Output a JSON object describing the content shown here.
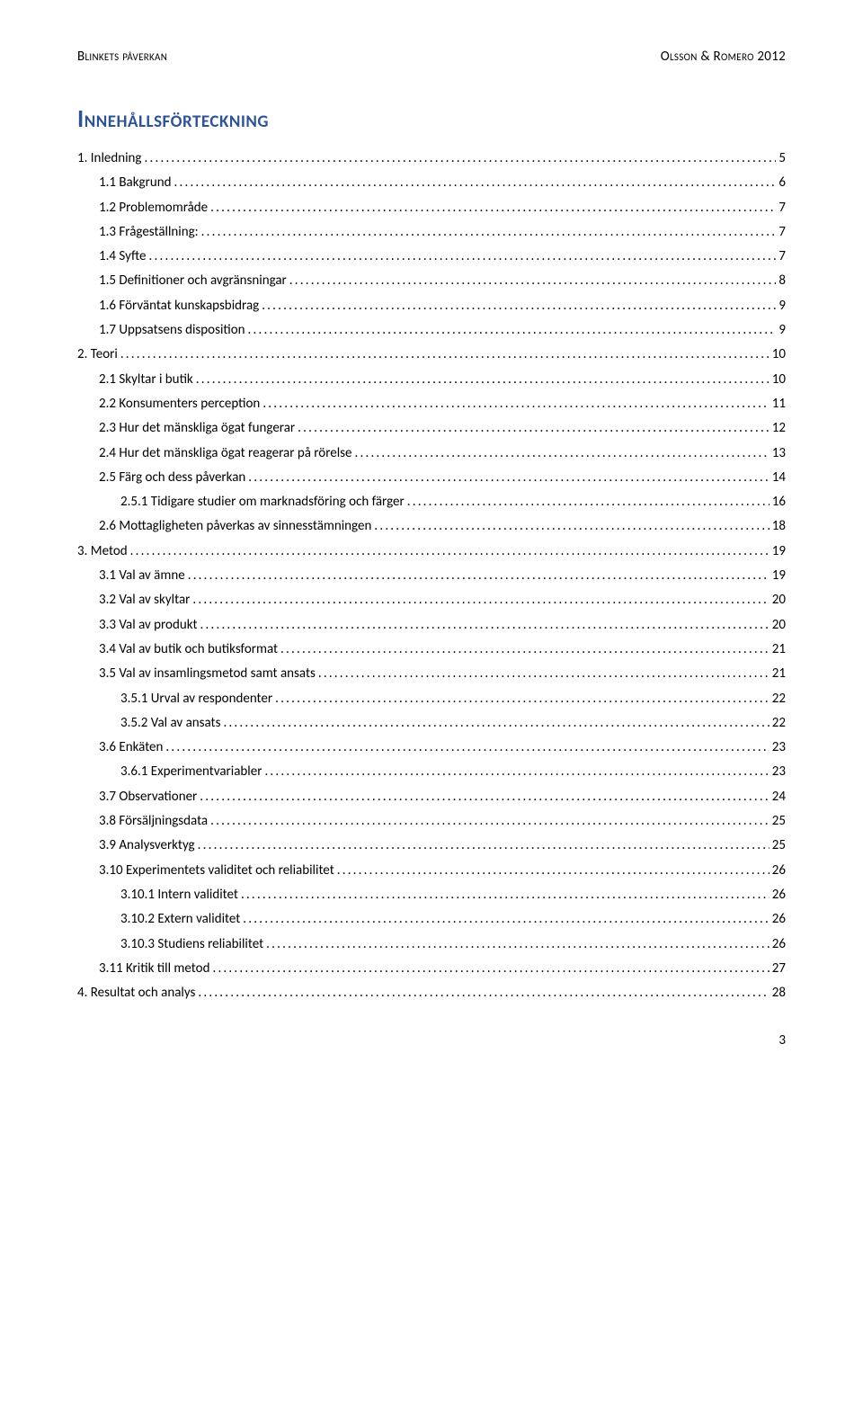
{
  "header": {
    "left": "Blinkets påverkan",
    "right": "Olsson & Romero 2012"
  },
  "toc_title": "Innehållsförteckning",
  "colors": {
    "title_color": "#2f5496",
    "text_color": "#000000",
    "background": "#ffffff"
  },
  "typography": {
    "body_font": "Calibri",
    "body_size_pt": 11,
    "title_size_pt": 20
  },
  "toc": [
    {
      "level": 1,
      "text": "1. Inledning",
      "page": "5"
    },
    {
      "level": 2,
      "text": "1.1 Bakgrund",
      "page": "6"
    },
    {
      "level": 2,
      "text": "1.2 Problemområde",
      "page": "7"
    },
    {
      "level": 2,
      "text": "1.3 Frågeställning:",
      "page": "7"
    },
    {
      "level": 2,
      "text": "1.4 Syfte",
      "page": "7"
    },
    {
      "level": 2,
      "text": "1.5 Definitioner och avgränsningar",
      "page": "8"
    },
    {
      "level": 2,
      "text": "1.6 Förväntat kunskapsbidrag",
      "page": "9"
    },
    {
      "level": 2,
      "text": "1.7 Uppsatsens disposition",
      "page": "9"
    },
    {
      "level": 1,
      "text": "2. Teori",
      "page": "10"
    },
    {
      "level": 2,
      "text": "2.1 Skyltar i butik",
      "page": "10"
    },
    {
      "level": 2,
      "text": "2.2 Konsumenters perception",
      "page": "11"
    },
    {
      "level": 2,
      "text": "2.3 Hur det mänskliga ögat fungerar",
      "page": "12"
    },
    {
      "level": 2,
      "text": "2.4 Hur det mänskliga ögat reagerar på rörelse",
      "page": "13"
    },
    {
      "level": 2,
      "text": "2.5 Färg och dess påverkan",
      "page": "14"
    },
    {
      "level": 3,
      "text": "2.5.1 Tidigare studier om marknadsföring och färger",
      "page": "16"
    },
    {
      "level": 2,
      "text": "2.6 Mottagligheten påverkas av sinnesstämningen",
      "page": "18"
    },
    {
      "level": 1,
      "text": "3. Metod",
      "page": "19"
    },
    {
      "level": 2,
      "text": "3.1 Val av ämne",
      "page": "19"
    },
    {
      "level": 2,
      "text": "3.2 Val av skyltar",
      "page": "20"
    },
    {
      "level": 2,
      "text": "3.3 Val av produkt",
      "page": "20"
    },
    {
      "level": 2,
      "text": "3.4 Val av butik och butiksformat",
      "page": "21"
    },
    {
      "level": 2,
      "text": "3.5 Val av insamlingsmetod samt ansats",
      "page": "21"
    },
    {
      "level": 3,
      "text": "3.5.1 Urval av respondenter",
      "page": "22"
    },
    {
      "level": 3,
      "text": "3.5.2 Val av ansats",
      "page": "22"
    },
    {
      "level": 2,
      "text": "3.6 Enkäten",
      "page": "23"
    },
    {
      "level": 3,
      "text": "3.6.1 Experimentvariabler",
      "page": "23"
    },
    {
      "level": 2,
      "text": "3.7 Observationer",
      "page": "24"
    },
    {
      "level": 2,
      "text": "3.8 Försäljningsdata",
      "page": "25"
    },
    {
      "level": 2,
      "text": "3.9 Analysverktyg",
      "page": "25"
    },
    {
      "level": 2,
      "text": "3.10 Experimentets validitet och reliabilitet",
      "page": "26"
    },
    {
      "level": 3,
      "text": "3.10.1 Intern validitet",
      "page": "26"
    },
    {
      "level": 3,
      "text": "3.10.2 Extern validitet",
      "page": "26"
    },
    {
      "level": 3,
      "text": "3.10.3 Studiens reliabilitet",
      "page": "26"
    },
    {
      "level": 2,
      "text": "3.11 Kritik till metod",
      "page": "27"
    },
    {
      "level": 1,
      "text": "4. Resultat och analys",
      "page": "28"
    }
  ],
  "page_number": "3"
}
